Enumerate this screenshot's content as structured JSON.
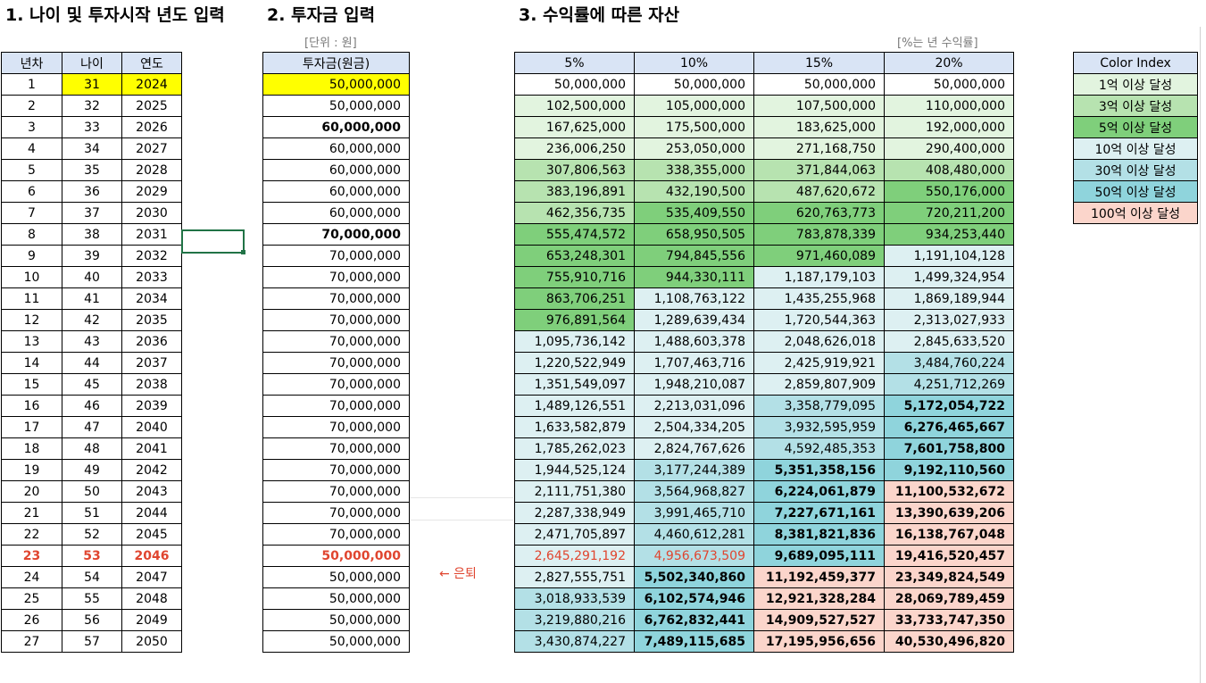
{
  "headings": {
    "section1": "1. 나이 및 투자시작 년도 입력",
    "section2": "2. 투자금 입력",
    "section3": "3. 수익률에 따른 자산",
    "unit_note": "[단위 : 원]",
    "rate_note": "[%는 년 수익률]"
  },
  "left_table": {
    "headers": [
      "년차",
      "나이",
      "연도"
    ],
    "rows": [
      [
        "1",
        "31",
        "2024"
      ],
      [
        "2",
        "32",
        "2025"
      ],
      [
        "3",
        "33",
        "2026"
      ],
      [
        "4",
        "34",
        "2027"
      ],
      [
        "5",
        "35",
        "2028"
      ],
      [
        "6",
        "36",
        "2029"
      ],
      [
        "7",
        "37",
        "2030"
      ],
      [
        "8",
        "38",
        "2031"
      ],
      [
        "9",
        "39",
        "2032"
      ],
      [
        "10",
        "40",
        "2033"
      ],
      [
        "11",
        "41",
        "2034"
      ],
      [
        "12",
        "42",
        "2035"
      ],
      [
        "13",
        "43",
        "2036"
      ],
      [
        "14",
        "44",
        "2037"
      ],
      [
        "15",
        "45",
        "2038"
      ],
      [
        "16",
        "46",
        "2039"
      ],
      [
        "17",
        "47",
        "2040"
      ],
      [
        "18",
        "48",
        "2041"
      ],
      [
        "19",
        "49",
        "2042"
      ],
      [
        "20",
        "50",
        "2043"
      ],
      [
        "21",
        "51",
        "2044"
      ],
      [
        "22",
        "52",
        "2045"
      ],
      [
        "23",
        "53",
        "2046"
      ],
      [
        "24",
        "54",
        "2047"
      ],
      [
        "25",
        "55",
        "2048"
      ],
      [
        "26",
        "56",
        "2049"
      ],
      [
        "27",
        "57",
        "2050"
      ]
    ]
  },
  "invest_table": {
    "header": "투자금(원금)",
    "rows": [
      "50,000,000",
      "50,000,000",
      "60,000,000",
      "60,000,000",
      "60,000,000",
      "60,000,000",
      "60,000,000",
      "70,000,000",
      "70,000,000",
      "70,000,000",
      "70,000,000",
      "70,000,000",
      "70,000,000",
      "70,000,000",
      "70,000,000",
      "70,000,000",
      "70,000,000",
      "70,000,000",
      "70,000,000",
      "70,000,000",
      "70,000,000",
      "70,000,000",
      "50,000,000",
      "50,000,000",
      "50,000,000",
      "50,000,000",
      "50,000,000"
    ],
    "bold_rows": [
      2,
      7
    ]
  },
  "retire_marker": "← 은퇴",
  "retire_row_index": 22,
  "result_table": {
    "headers": [
      "5%",
      "10%",
      "15%",
      "20%"
    ],
    "rows": [
      [
        "50,000,000",
        "50,000,000",
        "50,000,000",
        "50,000,000"
      ],
      [
        "102,500,000",
        "105,000,000",
        "107,500,000",
        "110,000,000"
      ],
      [
        "167,625,000",
        "175,500,000",
        "183,625,000",
        "192,000,000"
      ],
      [
        "236,006,250",
        "253,050,000",
        "271,168,750",
        "290,400,000"
      ],
      [
        "307,806,563",
        "338,355,000",
        "371,844,063",
        "408,480,000"
      ],
      [
        "383,196,891",
        "432,190,500",
        "487,620,672",
        "550,176,000"
      ],
      [
        "462,356,735",
        "535,409,550",
        "620,763,773",
        "720,211,200"
      ],
      [
        "555,474,572",
        "658,950,505",
        "783,878,339",
        "934,253,440"
      ],
      [
        "653,248,301",
        "794,845,556",
        "971,460,089",
        "1,191,104,128"
      ],
      [
        "755,910,716",
        "944,330,111",
        "1,187,179,103",
        "1,499,324,954"
      ],
      [
        "863,706,251",
        "1,108,763,122",
        "1,435,255,968",
        "1,869,189,944"
      ],
      [
        "976,891,564",
        "1,289,639,434",
        "1,720,544,363",
        "2,313,027,933"
      ],
      [
        "1,095,736,142",
        "1,488,603,378",
        "2,048,626,018",
        "2,845,633,520"
      ],
      [
        "1,220,522,949",
        "1,707,463,716",
        "2,425,919,921",
        "3,484,760,224"
      ],
      [
        "1,351,549,097",
        "1,948,210,087",
        "2,859,807,909",
        "4,251,712,269"
      ],
      [
        "1,489,126,551",
        "2,213,031,096",
        "3,358,779,095",
        "5,172,054,722"
      ],
      [
        "1,633,582,879",
        "2,504,334,205",
        "3,932,595,959",
        "6,276,465,667"
      ],
      [
        "1,785,262,023",
        "2,824,767,626",
        "4,592,485,353",
        "7,601,758,800"
      ],
      [
        "1,944,525,124",
        "3,177,244,389",
        "5,351,358,156",
        "9,192,110,560"
      ],
      [
        "2,111,751,380",
        "3,564,968,827",
        "6,224,061,879",
        "11,100,532,672"
      ],
      [
        "2,287,338,949",
        "3,991,465,710",
        "7,227,671,161",
        "13,390,639,206"
      ],
      [
        "2,471,705,897",
        "4,460,612,281",
        "8,381,821,836",
        "16,138,767,048"
      ],
      [
        "2,645,291,192",
        "4,956,673,509",
        "9,689,095,111",
        "19,416,520,457"
      ],
      [
        "2,827,555,751",
        "5,502,340,860",
        "11,192,459,377",
        "23,349,824,549"
      ],
      [
        "3,018,933,539",
        "6,102,574,946",
        "12,921,328,284",
        "28,069,789,459"
      ],
      [
        "3,219,880,216",
        "6,762,832,441",
        "14,909,527,527",
        "33,733,747,350"
      ],
      [
        "3,430,874,227",
        "7,489,115,685",
        "17,195,956,656",
        "40,530,496,820"
      ]
    ]
  },
  "color_index": {
    "header": "Color Index",
    "items": [
      {
        "label": "1억 이상 달성",
        "color": "#e2f4df"
      },
      {
        "label": "3억 이상 달성",
        "color": "#b7e3b0"
      },
      {
        "label": "5억 이상 달성",
        "color": "#7fcf7b"
      },
      {
        "label": "10억 이상 달성",
        "color": "#ddf0f2"
      },
      {
        "label": "30억 이상 달성",
        "color": "#b3e0e6"
      },
      {
        "label": "50억 이상 달성",
        "color": "#8fd4dc"
      },
      {
        "label": "100억 이상 달성",
        "color": "#fbd5cb"
      }
    ]
  },
  "colors": {
    "header_bg": "#d9e4f5",
    "highlight_yellow": "#ffff00",
    "retire_red": "#e0452f",
    "selection_green": "#217346"
  }
}
